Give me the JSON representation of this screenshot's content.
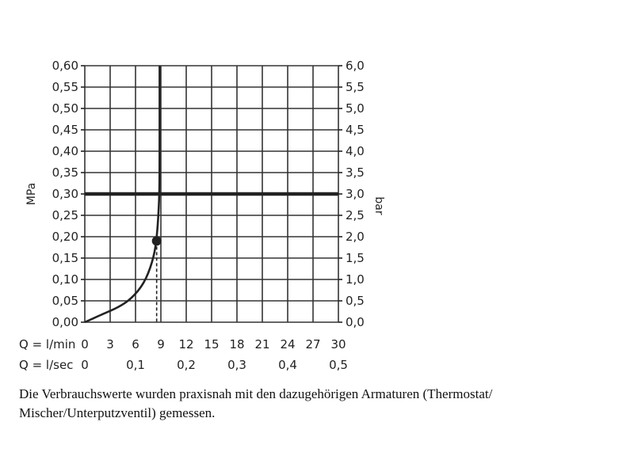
{
  "chart_data": {
    "type": "line",
    "ylabel_left": "MPa",
    "ylabel_right": "bar",
    "ylim_left": [
      0,
      0.6
    ],
    "ylim_right": [
      0,
      6.0
    ],
    "xlim": [
      0,
      30
    ],
    "grid": true,
    "y_ticks_left": [
      "0,00",
      "0,05",
      "0,10",
      "0,15",
      "0,20",
      "0,25",
      "0,30",
      "0,35",
      "0,40",
      "0,45",
      "0,50",
      "0,55",
      "0,60"
    ],
    "y_ticks_right": [
      "0,0",
      "0,5",
      "1,0",
      "1,5",
      "2,0",
      "2,5",
      "3,0",
      "3,5",
      "4,0",
      "4,5",
      "5,0",
      "5,5",
      "6,0"
    ],
    "x_axis_1": {
      "label": "Q = l/min",
      "ticks": [
        "0",
        "3",
        "6",
        "9",
        "12",
        "15",
        "18",
        "21",
        "24",
        "27",
        "30"
      ],
      "values": [
        0,
        3,
        6,
        9,
        12,
        15,
        18,
        21,
        24,
        27,
        30
      ]
    },
    "x_axis_2": {
      "label": "Q = l/sec",
      "ticks": [
        "0",
        "0,1",
        "0,2",
        "0,3",
        "0,4",
        "0,5"
      ],
      "values": [
        0,
        6,
        12,
        18,
        24,
        30
      ]
    },
    "series": [
      {
        "values": [
          [
            0,
            0
          ],
          [
            2,
            0.018
          ],
          [
            4,
            0.035
          ],
          [
            5.5,
            0.055
          ],
          [
            7,
            0.09
          ],
          [
            8,
            0.14
          ],
          [
            8.5,
            0.19
          ],
          [
            8.8,
            0.28
          ],
          [
            8.85,
            0.35
          ],
          [
            8.85,
            0.6
          ]
        ]
      }
    ],
    "reference_line": {
      "y": 0.3
    },
    "marker": {
      "x": 8.5,
      "y": 0.19
    }
  },
  "caption": {
    "line1": "Die Verbrauchswerte wurden praxisnah mit den dazugehörigen Armaturen (Thermostat/",
    "line2": "Mischer/Unterputzventil) gemessen."
  },
  "colors": {
    "ink": "#222222",
    "grid": "#333333"
  }
}
